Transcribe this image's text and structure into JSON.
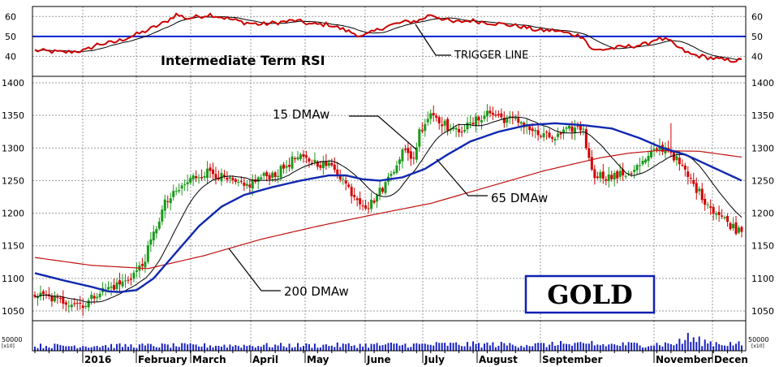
{
  "chart_data": {
    "type": "line",
    "colors": {
      "up": "#1a9a1a",
      "down": "#d40000",
      "rsi": "#cc0000",
      "trigger": "#000000",
      "ma15": "#000000",
      "ma65": "#1028b0",
      "ma200": "#c01010",
      "level50": "#0020cc",
      "volume": "#1a22c0",
      "grid": "#9a9a9a",
      "gold_box": "#1020b0"
    },
    "rsi_panel": {
      "title": "Intermediate Term RSI",
      "ticks": [
        40,
        50,
        60
      ],
      "ylim": [
        30,
        65
      ],
      "level": 50,
      "trigger_label": "TRIGGER LINE"
    },
    "price_panel": {
      "ticks": [
        1050,
        1100,
        1150,
        1200,
        1250,
        1300,
        1350,
        1400
      ],
      "ylim": [
        1035,
        1410
      ],
      "logo": "GOLD",
      "ma_labels": {
        "ma15": "15 DMAw",
        "ma65": "65 DMAw",
        "ma200": "200 DMAw"
      }
    },
    "volume_panel": {
      "tick": "50000",
      "unit": "[x10]"
    },
    "x_labels": [
      "2016",
      "February",
      "March",
      "April",
      "May",
      "June",
      "July",
      "August",
      "September",
      "November",
      "Decen"
    ],
    "anchors": {
      "close": [
        [
          0,
          1075
        ],
        [
          10,
          1065
        ],
        [
          18,
          1060
        ],
        [
          22,
          1078
        ],
        [
          28,
          1088
        ],
        [
          32,
          1095
        ],
        [
          38,
          1120
        ],
        [
          46,
          1215
        ],
        [
          52,
          1240
        ],
        [
          56,
          1255
        ],
        [
          62,
          1265
        ],
        [
          68,
          1250
        ],
        [
          74,
          1240
        ],
        [
          80,
          1255
        ],
        [
          86,
          1262
        ],
        [
          92,
          1285
        ],
        [
          98,
          1280
        ],
        [
          106,
          1270
        ],
        [
          112,
          1232
        ],
        [
          116,
          1215
        ],
        [
          118,
          1210
        ],
        [
          124,
          1245
        ],
        [
          130,
          1295
        ],
        [
          134,
          1285
        ],
        [
          136,
          1325
        ],
        [
          140,
          1355
        ],
        [
          144,
          1340
        ],
        [
          148,
          1325
        ],
        [
          154,
          1335
        ],
        [
          160,
          1355
        ],
        [
          166,
          1345
        ],
        [
          172,
          1340
        ],
        [
          178,
          1320
        ],
        [
          184,
          1315
        ],
        [
          190,
          1330
        ],
        [
          194,
          1330
        ],
        [
          196,
          1280
        ],
        [
          198,
          1260
        ],
        [
          204,
          1255
        ],
        [
          210,
          1262
        ],
        [
          216,
          1280
        ],
        [
          220,
          1300
        ],
        [
          224,
          1300
        ],
        [
          228,
          1275
        ],
        [
          232,
          1250
        ],
        [
          236,
          1225
        ],
        [
          240,
          1205
        ],
        [
          244,
          1190
        ],
        [
          248,
          1175
        ],
        [
          250,
          1178
        ]
      ],
      "rsi": [
        [
          0,
          43
        ],
        [
          10,
          42
        ],
        [
          18,
          43
        ],
        [
          22,
          46
        ],
        [
          28,
          47
        ],
        [
          32,
          49
        ],
        [
          38,
          52
        ],
        [
          46,
          57
        ],
        [
          50,
          61
        ],
        [
          54,
          59
        ],
        [
          62,
          61
        ],
        [
          68,
          59
        ],
        [
          74,
          57
        ],
        [
          80,
          56
        ],
        [
          86,
          57
        ],
        [
          92,
          58
        ],
        [
          98,
          56
        ],
        [
          104,
          56
        ],
        [
          110,
          53
        ],
        [
          116,
          50
        ],
        [
          124,
          55
        ],
        [
          130,
          57
        ],
        [
          136,
          58
        ],
        [
          140,
          61
        ],
        [
          144,
          59
        ],
        [
          148,
          57
        ],
        [
          154,
          58
        ],
        [
          160,
          57
        ],
        [
          166,
          56
        ],
        [
          172,
          55
        ],
        [
          178,
          53
        ],
        [
          184,
          53
        ],
        [
          190,
          51
        ],
        [
          194,
          50
        ],
        [
          196,
          45
        ],
        [
          198,
          43
        ],
        [
          204,
          44
        ],
        [
          210,
          45
        ],
        [
          216,
          46
        ],
        [
          220,
          49
        ],
        [
          224,
          48
        ],
        [
          228,
          44
        ],
        [
          232,
          41
        ],
        [
          236,
          40
        ],
        [
          240,
          39
        ],
        [
          244,
          38
        ],
        [
          250,
          38
        ]
      ],
      "volume": [
        [
          0,
          1
        ],
        [
          100,
          1.1
        ],
        [
          150,
          1.3
        ],
        [
          200,
          1.2
        ],
        [
          225,
          1.4
        ],
        [
          232,
          2.2
        ],
        [
          240,
          1.6
        ],
        [
          250,
          1.3
        ]
      ]
    },
    "ma65_anchors": [
      [
        0,
        1108
      ],
      [
        10,
        1097
      ],
      [
        20,
        1087
      ],
      [
        26,
        1080
      ],
      [
        30,
        1079
      ],
      [
        36,
        1082
      ],
      [
        42,
        1100
      ],
      [
        50,
        1140
      ],
      [
        58,
        1180
      ],
      [
        66,
        1210
      ],
      [
        74,
        1228
      ],
      [
        84,
        1240
      ],
      [
        94,
        1250
      ],
      [
        104,
        1258
      ],
      [
        110,
        1258
      ],
      [
        116,
        1252
      ],
      [
        122,
        1250
      ],
      [
        130,
        1255
      ],
      [
        138,
        1268
      ],
      [
        146,
        1290
      ],
      [
        154,
        1310
      ],
      [
        164,
        1325
      ],
      [
        174,
        1335
      ],
      [
        184,
        1338
      ],
      [
        194,
        1335
      ],
      [
        204,
        1330
      ],
      [
        214,
        1315
      ],
      [
        222,
        1300
      ],
      [
        230,
        1290
      ],
      [
        240,
        1270
      ],
      [
        250,
        1250
      ]
    ],
    "ma200_anchors": [
      [
        0,
        1132
      ],
      [
        20,
        1120
      ],
      [
        40,
        1115
      ],
      [
        60,
        1135
      ],
      [
        80,
        1160
      ],
      [
        100,
        1180
      ],
      [
        120,
        1198
      ],
      [
        140,
        1215
      ],
      [
        160,
        1240
      ],
      [
        180,
        1265
      ],
      [
        200,
        1285
      ],
      [
        210,
        1292
      ],
      [
        220,
        1296
      ],
      [
        235,
        1295
      ],
      [
        250,
        1286
      ]
    ]
  }
}
